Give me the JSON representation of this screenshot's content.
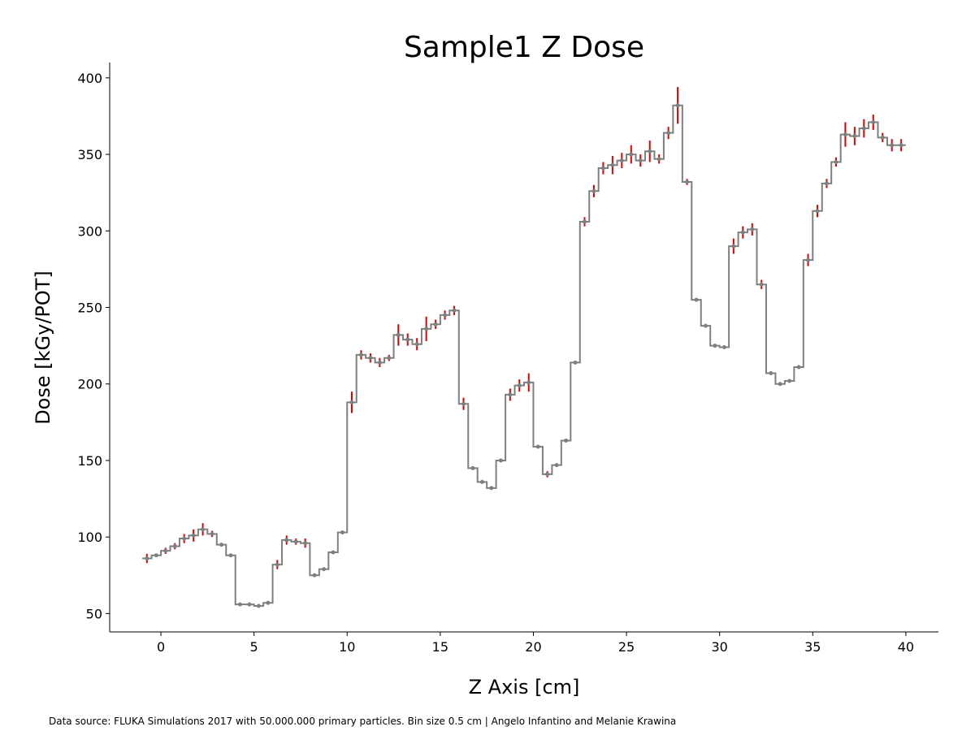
{
  "chart_data": {
    "type": "line",
    "title": "Sample1 Z Dose",
    "xlabel": "Z Axis [cm]",
    "ylabel": "Dose [kGy/POT]",
    "xlim": [
      -2.75,
      41.75
    ],
    "ylim": [
      38,
      410
    ],
    "xticks": [
      0,
      5,
      10,
      15,
      20,
      25,
      30,
      35,
      40
    ],
    "yticks": [
      50,
      100,
      150,
      200,
      250,
      300,
      350,
      400
    ],
    "bin_size": 0.5,
    "grid": false,
    "line_color": "#7f7f7f",
    "errorbar_color": "#e00000",
    "marker_color": "#7f7f7f",
    "x": [
      -0.75,
      -0.25,
      0.25,
      0.75,
      1.25,
      1.75,
      2.25,
      2.75,
      3.25,
      3.75,
      4.25,
      4.75,
      5.25,
      5.75,
      6.25,
      6.75,
      7.25,
      7.75,
      8.25,
      8.75,
      9.25,
      9.75,
      10.25,
      10.75,
      11.25,
      11.75,
      12.25,
      12.75,
      13.25,
      13.75,
      14.25,
      14.75,
      15.25,
      15.75,
      16.25,
      16.75,
      17.25,
      17.75,
      18.25,
      18.75,
      19.25,
      19.75,
      20.25,
      20.75,
      21.25,
      21.75,
      22.25,
      22.75,
      23.25,
      23.75,
      24.25,
      24.75,
      25.25,
      25.75,
      26.25,
      26.75,
      27.25,
      27.75,
      28.25,
      28.75,
      29.25,
      29.75,
      30.25,
      30.75,
      31.25,
      31.75,
      32.25,
      32.75,
      33.25,
      33.75,
      34.25,
      34.75,
      35.25,
      35.75,
      36.25,
      36.75,
      37.25,
      37.75,
      38.25,
      38.75,
      39.25,
      39.75
    ],
    "y": [
      86,
      88,
      91,
      94,
      99,
      101,
      105,
      102,
      95,
      88,
      56,
      56,
      55,
      57,
      82,
      98,
      97,
      96,
      75,
      79,
      90,
      103,
      188,
      219,
      217,
      214,
      217,
      232,
      229,
      226,
      236,
      239,
      245,
      248,
      187,
      145,
      136,
      132,
      150,
      193,
      199,
      201,
      159,
      141,
      147,
      163,
      214,
      306,
      326,
      341,
      343,
      346,
      350,
      346,
      352,
      347,
      364,
      382,
      332,
      255,
      238,
      225,
      224,
      290,
      299,
      301,
      265,
      207,
      200,
      202,
      211,
      281,
      313,
      331,
      345,
      363,
      362,
      367,
      371,
      361,
      356,
      356
    ],
    "yerr": [
      3,
      1,
      2,
      2,
      3,
      4,
      4,
      2,
      1,
      1,
      0.5,
      0.5,
      0.5,
      0.5,
      3,
      3,
      2,
      3,
      0.5,
      0.5,
      1,
      1,
      7,
      3,
      3,
      3,
      2,
      7,
      4,
      4,
      8,
      3,
      3,
      3,
      4,
      1,
      1,
      1,
      1,
      4,
      4,
      6,
      1,
      2,
      1,
      0.5,
      1,
      3,
      4,
      4,
      6,
      5,
      6,
      4,
      7,
      3,
      4,
      12,
      2,
      1,
      1,
      0.5,
      0.5,
      5,
      4,
      4,
      3,
      1,
      1,
      1,
      1,
      4,
      4,
      3,
      3,
      8,
      6,
      6,
      5,
      3,
      4,
      4
    ]
  },
  "footer": {
    "text": "Data source: FLUKA Simulations 2017 with 50.000.000 primary particles. Bin size 0.5 cm | Angelo Infantino and Melanie Krawina"
  }
}
